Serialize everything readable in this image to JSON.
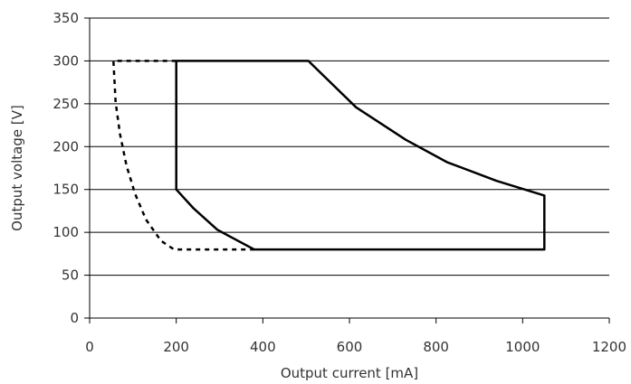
{
  "chart_data": {
    "type": "line",
    "title": "",
    "xlabel": "Output current [mA]",
    "ylabel": "Output voltage [V]",
    "xlim": [
      0,
      1200
    ],
    "ylim": [
      0,
      350
    ],
    "xticks": [
      0,
      200,
      400,
      600,
      800,
      1000,
      1200
    ],
    "yticks": [
      0,
      50,
      100,
      150,
      200,
      250,
      300,
      350
    ],
    "grid": "horizontal",
    "legend": "none",
    "series": [
      {
        "style": "solid",
        "color": "#000000",
        "points": [
          [
            200,
            300
          ],
          [
            505,
            300
          ],
          [
            615,
            246
          ],
          [
            730,
            208
          ],
          [
            825,
            182
          ],
          [
            940,
            160
          ],
          [
            1050,
            143
          ],
          [
            1050,
            80
          ],
          [
            380,
            80
          ],
          [
            295,
            103
          ],
          [
            240,
            128
          ],
          [
            200,
            150
          ],
          [
            200,
            300
          ]
        ]
      },
      {
        "style": "dashed",
        "color": "#000000",
        "points": [
          [
            200,
            300
          ],
          [
            55,
            300
          ],
          [
            60,
            252
          ],
          [
            70,
            215
          ],
          [
            85,
            178
          ],
          [
            105,
            145
          ],
          [
            130,
            115
          ],
          [
            165,
            90
          ],
          [
            195,
            80
          ],
          [
            380,
            80
          ]
        ]
      }
    ]
  }
}
